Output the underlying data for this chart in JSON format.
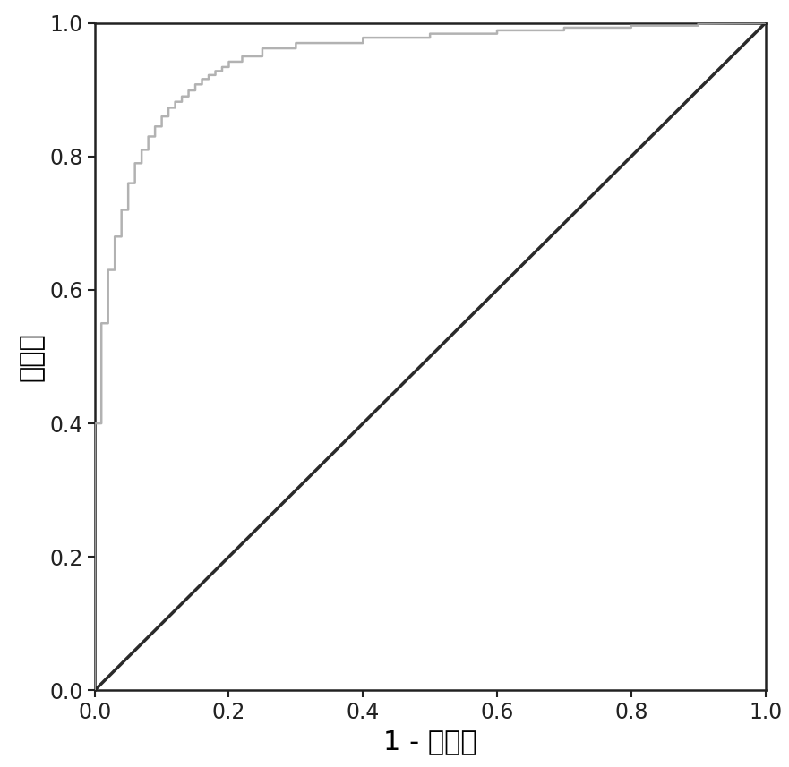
{
  "title": "",
  "xlabel": "1 - 特异性",
  "ylabel": "敏感度",
  "xlim": [
    0.0,
    1.0
  ],
  "ylim": [
    0.0,
    1.0
  ],
  "xticks": [
    0.0,
    0.2,
    0.4,
    0.6,
    0.8,
    1.0
  ],
  "yticks": [
    0.0,
    0.2,
    0.4,
    0.6,
    0.8,
    1.0
  ],
  "diagonal_color": "#2a2a2a",
  "roc_color": "#aaaaaa",
  "diagonal_linewidth": 2.5,
  "roc_linewidth": 1.8,
  "background_color": "#ffffff",
  "font_size_ticks": 17,
  "font_size_labels": 22,
  "roc_fpr": [
    0.0,
    0.0,
    0.01,
    0.01,
    0.02,
    0.02,
    0.03,
    0.03,
    0.04,
    0.04,
    0.05,
    0.05,
    0.06,
    0.06,
    0.07,
    0.07,
    0.08,
    0.08,
    0.09,
    0.09,
    0.1,
    0.1,
    0.11,
    0.11,
    0.12,
    0.12,
    0.13,
    0.13,
    0.14,
    0.14,
    0.15,
    0.15,
    0.16,
    0.16,
    0.17,
    0.17,
    0.18,
    0.18,
    0.19,
    0.19,
    0.2,
    0.2,
    0.22,
    0.22,
    0.25,
    0.25,
    0.3,
    0.3,
    0.4,
    0.4,
    0.5,
    0.5,
    0.6,
    0.6,
    0.7,
    0.7,
    0.8,
    0.8,
    0.9,
    0.9,
    1.0
  ],
  "roc_tpr": [
    0.0,
    0.4,
    0.4,
    0.55,
    0.55,
    0.63,
    0.63,
    0.68,
    0.68,
    0.72,
    0.72,
    0.76,
    0.76,
    0.79,
    0.79,
    0.81,
    0.81,
    0.83,
    0.83,
    0.845,
    0.845,
    0.86,
    0.86,
    0.873,
    0.873,
    0.882,
    0.882,
    0.89,
    0.89,
    0.899,
    0.899,
    0.908,
    0.908,
    0.916,
    0.916,
    0.922,
    0.922,
    0.928,
    0.928,
    0.934,
    0.934,
    0.942,
    0.942,
    0.95,
    0.95,
    0.962,
    0.962,
    0.97,
    0.97,
    0.978,
    0.978,
    0.984,
    0.984,
    0.989,
    0.989,
    0.993,
    0.993,
    0.996,
    0.996,
    0.999,
    1.0
  ]
}
